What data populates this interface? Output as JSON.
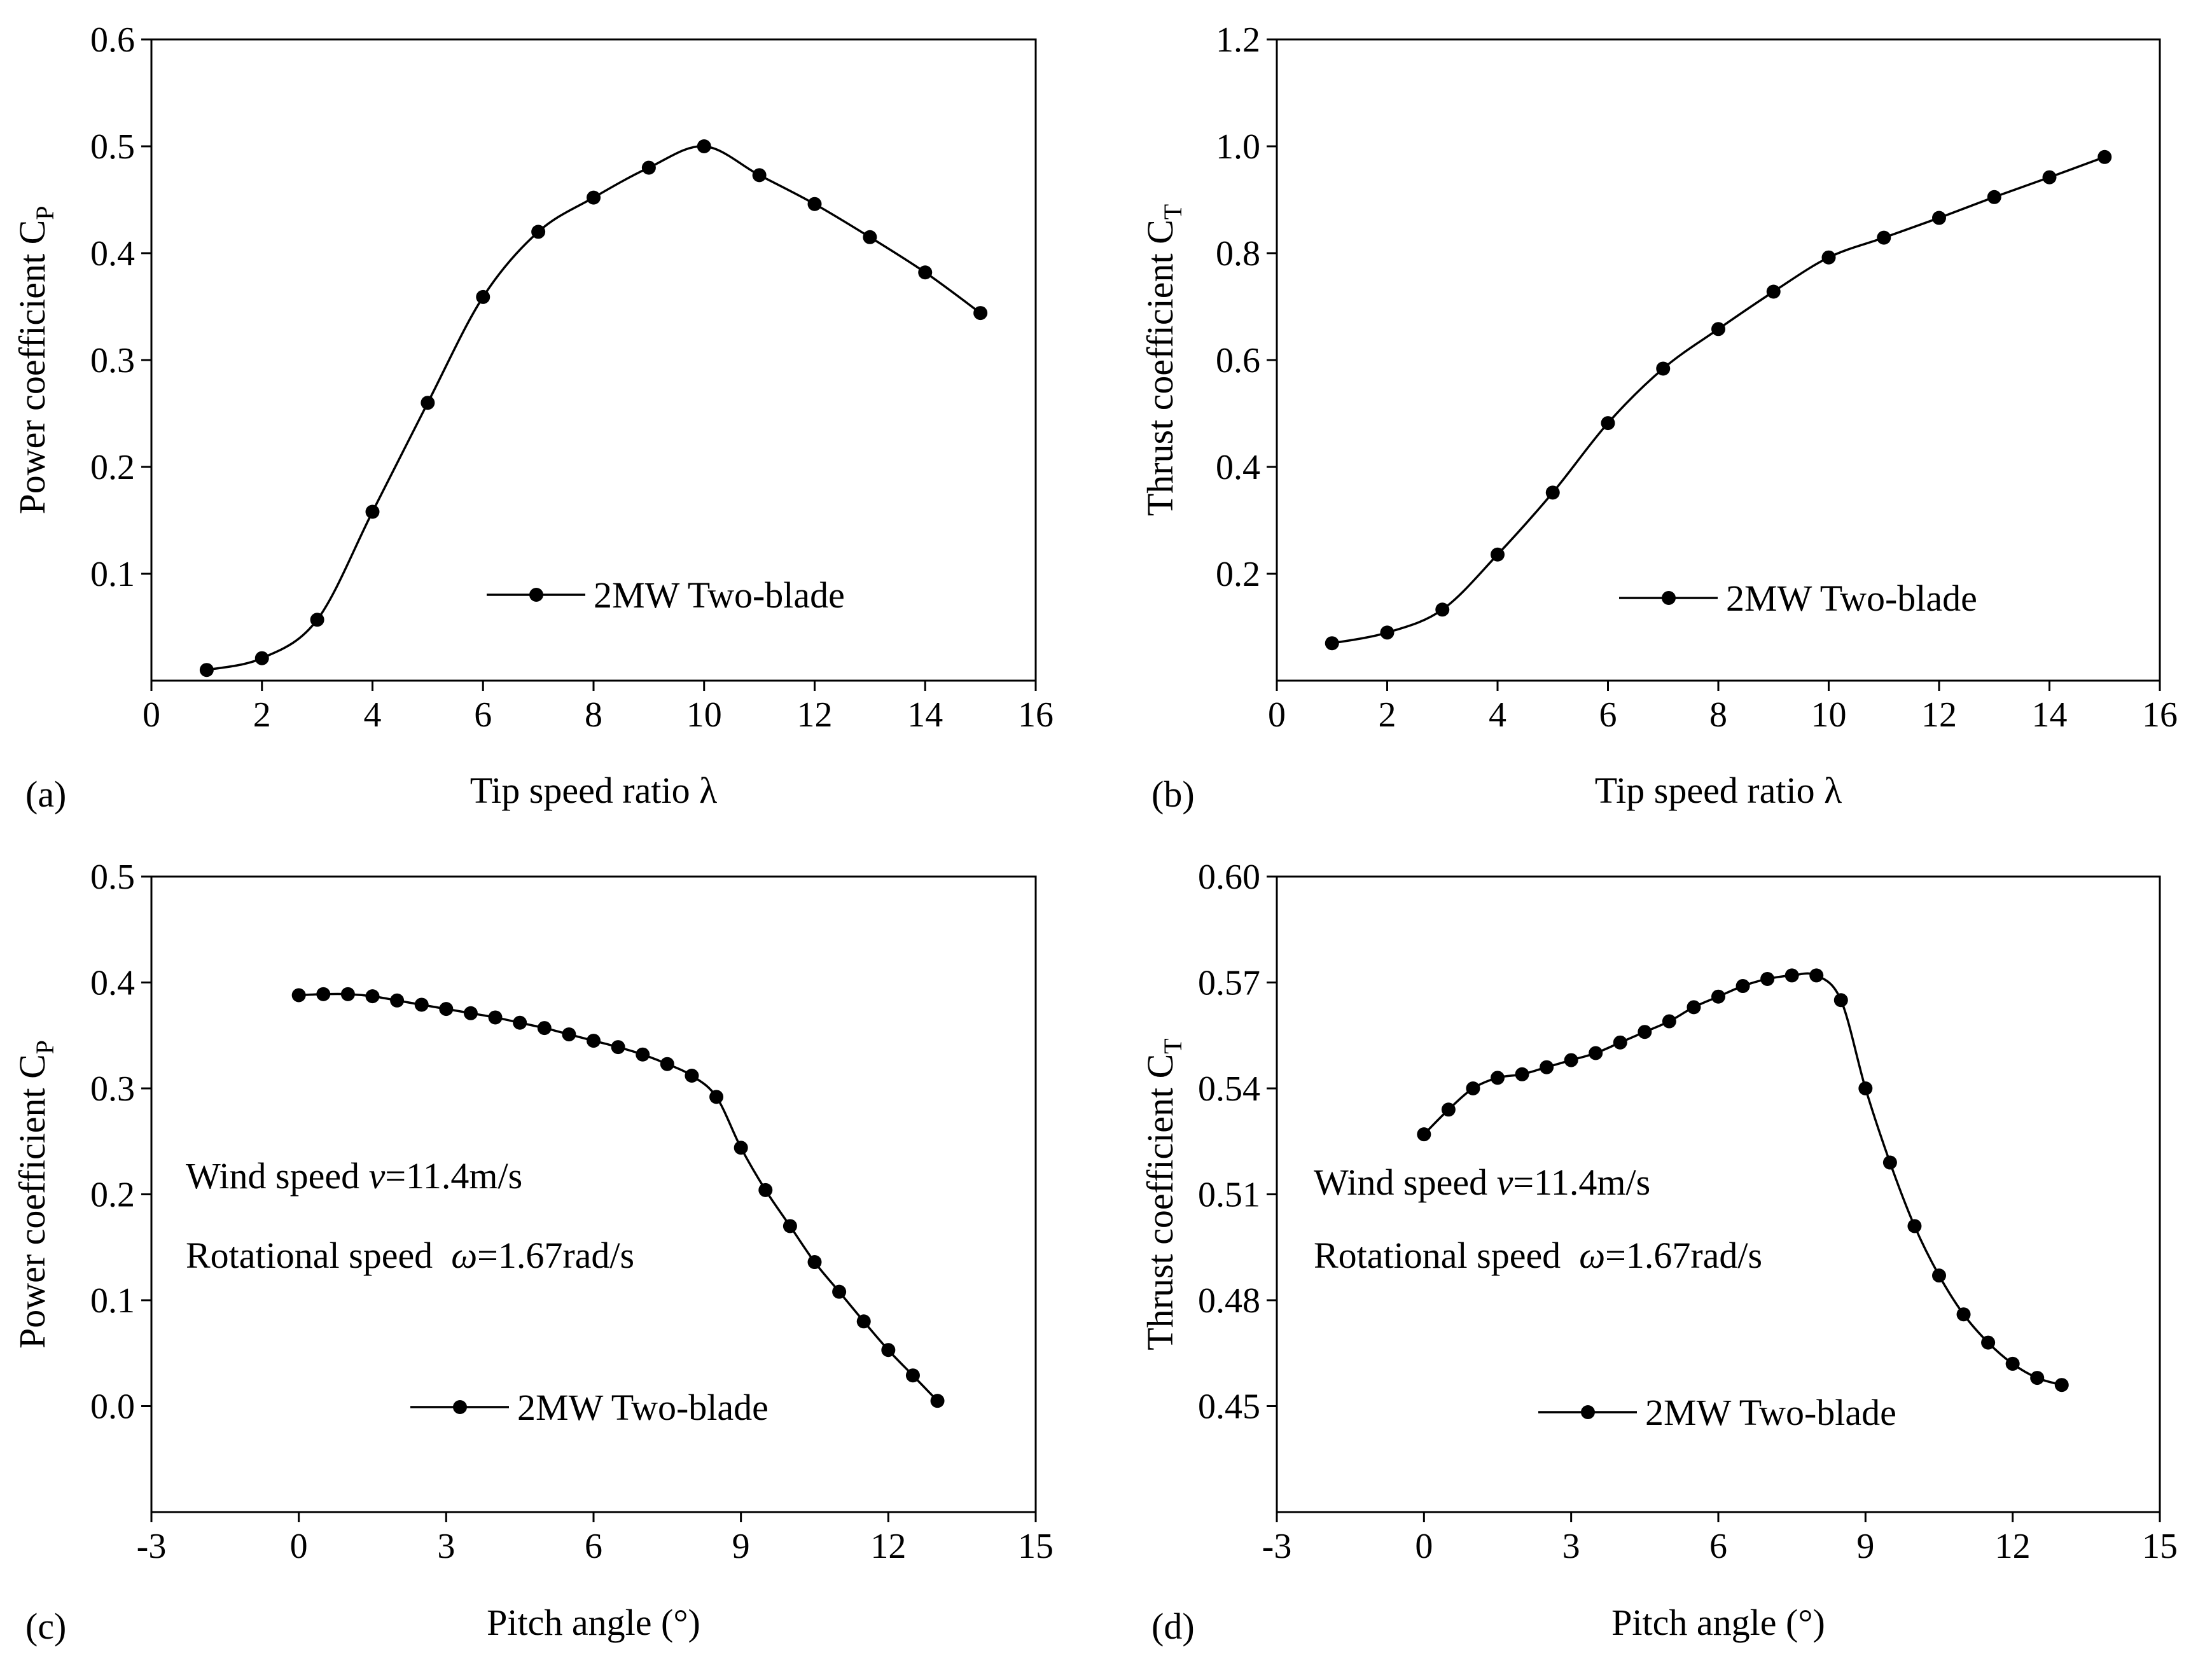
{
  "figure": {
    "background": "#ffffff",
    "line_color": "#000000"
  },
  "chart_data": [
    {
      "type": "line",
      "panel_label": "(a)",
      "xlabel": "Tip speed ratio λ",
      "ylabel": "Power coefficient C",
      "ylabel_sub": "P",
      "xlim": [
        0,
        16
      ],
      "ylim": [
        0,
        0.6
      ],
      "xticks": [
        0,
        2,
        4,
        6,
        8,
        10,
        12,
        14,
        16
      ],
      "xtick_labels": [
        "0",
        "2",
        "4",
        "6",
        "8",
        "10",
        "12",
        "14",
        "16"
      ],
      "yticks": [
        0.1,
        0.2,
        0.3,
        0.4,
        0.5,
        0.6
      ],
      "ytick_labels": [
        "0.1",
        "0.2",
        "0.3",
        "0.4",
        "0.5",
        "0.6"
      ],
      "legend": {
        "label": "2MW Two-blade",
        "position": "lower-right"
      },
      "annotations": [],
      "series": [
        {
          "name": "2MW Two-blade",
          "x": [
            1,
            2,
            3,
            4,
            5,
            6,
            7,
            8,
            9,
            10,
            11,
            12,
            13,
            14,
            15
          ],
          "y": [
            0.01,
            0.021,
            0.057,
            0.158,
            0.26,
            0.359,
            0.42,
            0.452,
            0.48,
            0.5,
            0.473,
            0.446,
            0.415,
            0.382,
            0.344
          ]
        }
      ]
    },
    {
      "type": "line",
      "panel_label": "(b)",
      "xlabel": "Tip speed ratio λ",
      "ylabel": "Thrust coefficient C",
      "ylabel_sub": "T",
      "xlim": [
        0,
        16
      ],
      "ylim": [
        0,
        1.2
      ],
      "xticks": [
        0,
        2,
        4,
        6,
        8,
        10,
        12,
        14,
        16
      ],
      "xtick_labels": [
        "0",
        "2",
        "4",
        "6",
        "8",
        "10",
        "12",
        "14",
        "16"
      ],
      "yticks": [
        0.2,
        0.4,
        0.6,
        0.8,
        1.0,
        1.2
      ],
      "ytick_labels": [
        "0.2",
        "0.4",
        "0.6",
        "0.8",
        "1.0",
        "1.2"
      ],
      "legend": {
        "label": "2MW Two-blade",
        "position": "lower-right"
      },
      "annotations": [],
      "series": [
        {
          "name": "2MW Two-blade",
          "x": [
            1,
            2,
            3,
            4,
            5,
            6,
            7,
            8,
            9,
            10,
            11,
            12,
            13,
            14,
            15
          ],
          "y": [
            0.07,
            0.09,
            0.133,
            0.236,
            0.352,
            0.482,
            0.584,
            0.658,
            0.728,
            0.792,
            0.829,
            0.866,
            0.905,
            0.942,
            0.98
          ]
        }
      ]
    },
    {
      "type": "line",
      "panel_label": "(c)",
      "xlabel": "Pitch angle (°)",
      "ylabel": "Power coefficient C",
      "ylabel_sub": "P",
      "xlim": [
        -3,
        15
      ],
      "ylim": [
        -0.1,
        0.5
      ],
      "xticks": [
        -3,
        0,
        3,
        6,
        9,
        12,
        15
      ],
      "xtick_labels": [
        "-3",
        "0",
        "3",
        "6",
        "9",
        "12",
        "15"
      ],
      "yticks": [
        0.0,
        0.1,
        0.2,
        0.3,
        0.4,
        0.5
      ],
      "ytick_labels": [
        "0.0",
        "0.1",
        "0.2",
        "0.3",
        "0.4",
        "0.5"
      ],
      "legend": {
        "label": "2MW Two-blade",
        "position": "lower-right"
      },
      "annotations": [
        {
          "prefix": "Wind speed ",
          "var": "v",
          "suffix": "=11.4m/s"
        },
        {
          "prefix": "Rotational speed  ",
          "var": "ω",
          "suffix": "=1.67rad/s"
        }
      ],
      "series": [
        {
          "name": "2MW Two-blade",
          "x": [
            0,
            0.5,
            1,
            1.5,
            2,
            2.5,
            3,
            3.5,
            4,
            4.5,
            5,
            5.5,
            6,
            6.5,
            7,
            7.5,
            8,
            8.5,
            9,
            9.5,
            10,
            10.5,
            11,
            11.5,
            12,
            12.5,
            13
          ],
          "y": [
            0.388,
            0.389,
            0.389,
            0.387,
            0.383,
            0.379,
            0.375,
            0.371,
            0.367,
            0.362,
            0.357,
            0.351,
            0.345,
            0.339,
            0.332,
            0.323,
            0.312,
            0.292,
            0.244,
            0.204,
            0.17,
            0.136,
            0.108,
            0.08,
            0.053,
            0.029,
            0.005
          ]
        }
      ]
    },
    {
      "type": "line",
      "panel_label": "(d)",
      "xlabel": "Pitch angle (°)",
      "ylabel": "Thrust coefficient C",
      "ylabel_sub": "T",
      "xlim": [
        -3,
        15
      ],
      "ylim": [
        0.42,
        0.6
      ],
      "xticks": [
        -3,
        0,
        3,
        6,
        9,
        12,
        15
      ],
      "xtick_labels": [
        "-3",
        "0",
        "3",
        "6",
        "9",
        "12",
        "15"
      ],
      "yticks": [
        0.45,
        0.48,
        0.51,
        0.54,
        0.57,
        0.6
      ],
      "ytick_labels": [
        "0.45",
        "0.48",
        "0.51",
        "0.54",
        "0.57",
        "0.60"
      ],
      "legend": {
        "label": "2MW Two-blade",
        "position": "lower-right"
      },
      "annotations": [
        {
          "prefix": "Wind speed ",
          "var": "v",
          "suffix": "=11.4m/s"
        },
        {
          "prefix": "Rotational speed  ",
          "var": "ω",
          "suffix": "=1.67rad/s"
        }
      ],
      "series": [
        {
          "name": "2MW Two-blade",
          "x": [
            0,
            0.5,
            1,
            1.5,
            2,
            2.5,
            3,
            3.5,
            4,
            4.5,
            5,
            5.5,
            6,
            6.5,
            7,
            7.5,
            8,
            8.5,
            9,
            9.5,
            10,
            10.5,
            11,
            11.5,
            12,
            12.5,
            13
          ],
          "y": [
            0.527,
            0.534,
            0.54,
            0.543,
            0.544,
            0.546,
            0.548,
            0.55,
            0.553,
            0.556,
            0.559,
            0.563,
            0.566,
            0.569,
            0.571,
            0.572,
            0.572,
            0.565,
            0.54,
            0.519,
            0.501,
            0.487,
            0.476,
            0.468,
            0.462,
            0.458,
            0.456
          ]
        }
      ]
    }
  ]
}
